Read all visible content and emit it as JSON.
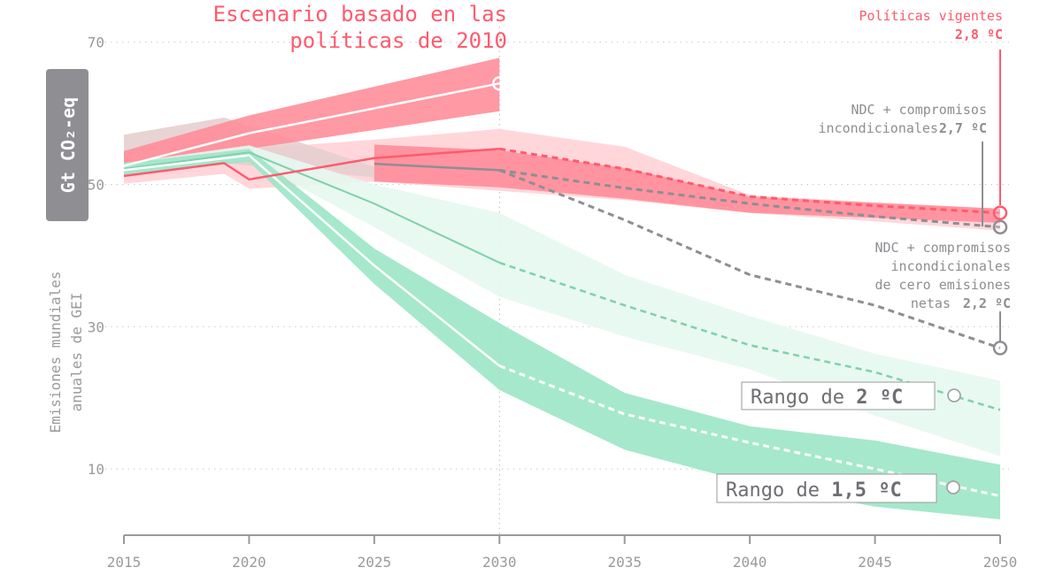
{
  "chart_data": {
    "type": "line",
    "title": "",
    "ylabel_box": "Gt CO₂-eq",
    "ylabel_lines": [
      "Emisiones mundiales",
      "anuales de GEI"
    ],
    "xlim": [
      2015,
      2050
    ],
    "ylim": [
      0,
      70
    ],
    "x_ticks": [
      2015,
      2020,
      2025,
      2030,
      2035,
      2040,
      2045,
      2050
    ],
    "y_ticks": [
      10,
      30,
      50,
      70
    ],
    "grid": "horizontal dotted",
    "colors": {
      "red": "#ff5a6e",
      "red_band": "#ff8b97",
      "pink_band": "#ffd3d7",
      "mauve_band": "#e6cfcf",
      "green_band": "#9ce5c6",
      "light_green_band": "#e6f8ef",
      "green_line": "#7fd1ad",
      "gray": "#8e8e93"
    },
    "bands": [
      {
        "id": "policies-range",
        "color": "pink_band",
        "x": [
          2015,
          2019,
          2020,
          2025,
          2030,
          2035,
          2040,
          2045,
          2050
        ],
        "lower": [
          50.1,
          51.5,
          49.4,
          50.4,
          49.1,
          47.8,
          46.0,
          44.8,
          43.5
        ],
        "upper": [
          52.5,
          54.2,
          55.0,
          56.3,
          57.8,
          55.3,
          48.5,
          47.5,
          46.6
        ]
      },
      {
        "id": "historic-range",
        "color": "mauve_band",
        "x": [
          2015,
          2019,
          2025
        ],
        "lower": [
          51.5,
          53.0,
          51.0
        ],
        "upper": [
          57.0,
          59.4,
          52.5
        ]
      },
      {
        "id": "ndc-range",
        "color": "red_band",
        "x": [
          2025,
          2030,
          2035,
          2040,
          2045,
          2050
        ],
        "lower": [
          50.4,
          49.6,
          48.0,
          46.0,
          45.3,
          44.6
        ],
        "upper": [
          55.6,
          54.8,
          52.3,
          48.3,
          47.4,
          46.6
        ]
      },
      {
        "id": "scenario-2010-range",
        "color": "red_band",
        "x": [
          2015,
          2020,
          2030
        ],
        "lower": [
          51.4,
          55.0,
          60.3
        ],
        "upper": [
          54.7,
          59.7,
          67.8
        ]
      },
      {
        "id": "range-2c",
        "color": "light_green_band",
        "x": [
          2015,
          2020,
          2025,
          2030,
          2035,
          2040,
          2045,
          2050
        ],
        "lower": [
          51.5,
          53.5,
          44.0,
          34.2,
          28.6,
          24.0,
          17.5,
          11.8
        ],
        "upper": [
          53.0,
          55.5,
          50.0,
          46.0,
          37.3,
          31.5,
          26.2,
          22.4
        ]
      },
      {
        "id": "range-1-5c",
        "color": "green_band",
        "x": [
          2015,
          2020,
          2025,
          2030,
          2035,
          2040,
          2045,
          2050
        ],
        "lower": [
          51.4,
          53.2,
          36.0,
          21.1,
          12.7,
          8.0,
          4.7,
          2.9
        ],
        "upper": [
          53.0,
          55.0,
          41.0,
          30.5,
          20.7,
          16.0,
          14.0,
          10.6
        ]
      }
    ],
    "series": [
      {
        "id": "scenario-2010",
        "color": "#ffffff",
        "x": [
          2015,
          2020,
          2030
        ],
        "values": [
          52.6,
          57.2,
          64.2
        ],
        "dashed_from": null,
        "end_marker": true
      },
      {
        "id": "path-2c",
        "color": "green_line",
        "x": [
          2015,
          2020,
          2025,
          2030,
          2035,
          2040,
          2045,
          2050
        ],
        "values": [
          52.2,
          54.5,
          47.3,
          39.0,
          33.0,
          27.4,
          23.6,
          18.3
        ],
        "dashed_from": 2030,
        "end_marker": false
      },
      {
        "id": "path-1-5c",
        "color": "#ffffff",
        "x": [
          2015,
          2020,
          2025,
          2030,
          2035,
          2040,
          2045,
          2050
        ],
        "values": [
          52.0,
          54.1,
          38.6,
          24.5,
          17.7,
          13.7,
          10.0,
          6.2
        ],
        "dashed_from": 2030,
        "end_marker": false
      },
      {
        "id": "ndc-net-zero",
        "color": "gray",
        "x": [
          2030,
          2035,
          2040,
          2045,
          2050
        ],
        "values": [
          52.0,
          45.0,
          37.3,
          33.0,
          27.0
        ],
        "dashed_from": 2030,
        "end_marker": true
      },
      {
        "id": "ndc-unconditional",
        "color": "gray",
        "x": [
          2025,
          2030,
          2035,
          2040,
          2045,
          2050
        ],
        "values": [
          52.9,
          52.0,
          49.5,
          47.3,
          45.5,
          44.0
        ],
        "dashed_from": 2030,
        "end_marker": true
      },
      {
        "id": "current-policies",
        "color": "red",
        "x": [
          2015,
          2019,
          2020,
          2025,
          2030,
          2035,
          2040,
          2045,
          2050
        ],
        "values": [
          51.2,
          53.0,
          50.7,
          53.7,
          55.0,
          52.2,
          48.3,
          47.0,
          46.0
        ],
        "dashed_from": 2030,
        "end_marker": true
      }
    ],
    "annotations": {
      "scenario_2010": [
        "Escenario basado en las",
        "políticas de 2010"
      ],
      "policies_title": "Políticas vigentes",
      "policies_temp": "2,8 ºC",
      "ndc_uncond_line1": "NDC + compromisos",
      "ndc_uncond_line2": "incondicionales",
      "ndc_uncond_temp": "2,7 ºC",
      "ndc_nz_line1": "NDC + compromisos",
      "ndc_nz_line2": "incondicionales",
      "ndc_nz_line3": "de cero emisiones",
      "ndc_nz_line4": "netas",
      "ndc_nz_temp": "2,2 ºC",
      "range_2c_prefix": "Rango de",
      "range_2c_value": "2 ºC",
      "range_15c_prefix": "Rango de",
      "range_15c_value": "1,5 ºC"
    }
  }
}
